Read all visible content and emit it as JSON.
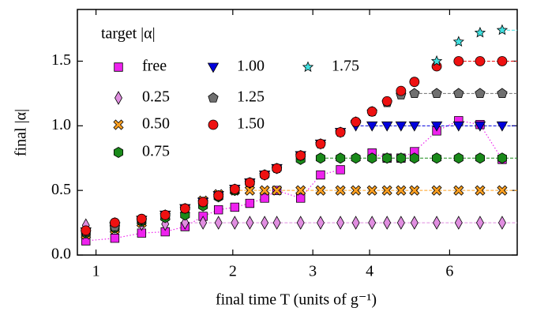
{
  "chart_data": {
    "type": "scatter",
    "xlabel": "final time T (units of g⁻¹)",
    "ylabel": "final |α|",
    "legend_title": "target |α|",
    "legend": "upper left",
    "log_x": true,
    "x": [
      0.95,
      1.1,
      1.26,
      1.42,
      1.57,
      1.72,
      1.86,
      2.02,
      2.18,
      2.35,
      2.5,
      2.82,
      3.12,
      3.45,
      3.73,
      4.05,
      4.37,
      4.69,
      5.02,
      5.62,
      6.28,
      7.0,
      7.83
    ],
    "xlim": [
      0.91,
      8.45
    ],
    "xticks": [
      1,
      2,
      3,
      4,
      6
    ],
    "ylim": [
      0,
      1.9
    ],
    "yticks": [
      {
        "value": 0,
        "label": "0.0"
      },
      0.5,
      {
        "value": 1,
        "label": "1.0"
      },
      1.5
    ],
    "series": [
      {
        "name": "free",
        "color": "#ee22ee",
        "marker": "square",
        "line": "dotted",
        "values": [
          0.11,
          0.13,
          0.17,
          0.18,
          0.22,
          0.3,
          0.35,
          0.37,
          0.4,
          0.44,
          0.5,
          0.44,
          0.62,
          0.66,
          null,
          0.79,
          0.75,
          0.75,
          0.8,
          0.96,
          1.04,
          1.01,
          0.74
        ]
      },
      {
        "name": "0.25",
        "color": "#e08ee0",
        "marker": "diamond",
        "line": "dashed",
        "values": [
          0.23,
          0.24,
          0.24,
          0.24,
          0.25,
          0.25,
          0.25,
          0.25,
          0.25,
          0.25,
          0.25,
          0.25,
          0.25,
          0.25,
          0.25,
          0.25,
          0.25,
          0.25,
          0.25,
          0.25,
          0.25,
          0.25,
          0.25
        ]
      },
      {
        "name": "0.50",
        "color": "#ffa020",
        "marker": "cross",
        "line": "dashed",
        "values": [
          0.16,
          0.2,
          0.25,
          0.3,
          0.35,
          0.42,
          0.47,
          0.5,
          0.5,
          0.5,
          0.5,
          0.5,
          0.5,
          0.5,
          0.5,
          0.5,
          0.5,
          0.5,
          0.5,
          0.5,
          0.5,
          0.5,
          0.5
        ]
      },
      {
        "name": "0.75",
        "color": "#1a8a1a",
        "marker": "hexagon",
        "line": "dashed",
        "values": [
          0.17,
          0.21,
          0.26,
          0.29,
          0.31,
          0.38,
          0.45,
          0.5,
          0.56,
          0.62,
          0.67,
          0.74,
          0.75,
          0.75,
          0.75,
          0.75,
          0.75,
          0.75,
          0.75,
          0.75,
          0.75,
          0.75,
          0.75
        ]
      },
      {
        "name": "1.00",
        "color": "#0000dd",
        "marker": "triangle",
        "line": "dashed",
        "values": [
          0.18,
          0.22,
          0.27,
          0.31,
          0.36,
          0.41,
          0.46,
          0.51,
          0.56,
          0.62,
          0.67,
          0.77,
          0.86,
          0.95,
          1.0,
          1.0,
          1.0,
          1.0,
          1.0,
          1.0,
          1.0,
          1.0,
          1.0
        ]
      },
      {
        "name": "1.25",
        "color": "#707070",
        "marker": "pentagon",
        "line": "dashed",
        "values": [
          0.18,
          0.22,
          0.27,
          0.31,
          0.36,
          0.41,
          0.46,
          0.51,
          0.56,
          0.62,
          0.67,
          0.77,
          0.86,
          0.95,
          1.03,
          1.11,
          1.18,
          1.24,
          1.25,
          1.25,
          1.25,
          1.25,
          1.25
        ]
      },
      {
        "name": "1.50",
        "color": "#ee1111",
        "marker": "circle",
        "line": "dashed",
        "values": [
          0.19,
          0.25,
          0.28,
          0.31,
          0.36,
          0.41,
          0.46,
          0.51,
          0.56,
          0.62,
          0.67,
          0.77,
          0.86,
          0.95,
          1.03,
          1.11,
          1.19,
          1.27,
          1.34,
          1.46,
          1.5,
          1.5,
          1.5
        ]
      },
      {
        "name": "1.75",
        "color": "#40e0e0",
        "marker": "star",
        "line": "dashed",
        "values": [
          null,
          null,
          null,
          null,
          null,
          null,
          null,
          null,
          null,
          null,
          null,
          null,
          null,
          null,
          null,
          null,
          null,
          null,
          null,
          1.5,
          1.65,
          1.72,
          1.74
        ]
      }
    ]
  }
}
